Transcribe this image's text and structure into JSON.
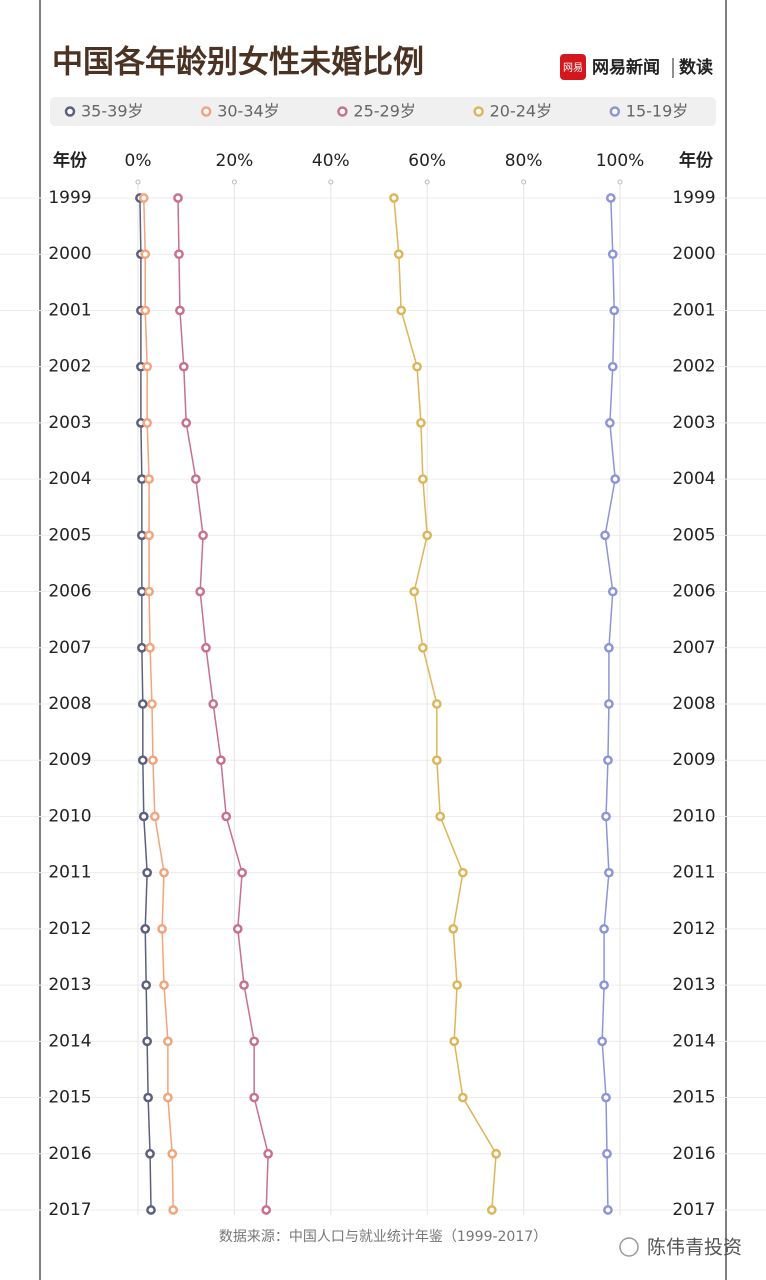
{
  "brand": {
    "badge": "网易",
    "name": "网易新闻",
    "section": "数读"
  },
  "watermark": "陈伟青投资",
  "chart_data": {
    "type": "line",
    "title": "中国各年龄别女性未婚比例",
    "source": "数据来源：中国人口与就业统计年鉴（1999-2017）",
    "y_axis_title": "年份",
    "categories": [
      "1999",
      "2000",
      "2001",
      "2002",
      "2003",
      "2004",
      "2005",
      "2006",
      "2007",
      "2008",
      "2009",
      "2010",
      "2011",
      "2012",
      "2013",
      "2014",
      "2015",
      "2016",
      "2017"
    ],
    "xlim": [
      0,
      100
    ],
    "xticks": [
      {
        "value": 0,
        "label": "0%"
      },
      {
        "value": 20,
        "label": "20%"
      },
      {
        "value": 40,
        "label": "40%"
      },
      {
        "value": 60,
        "label": "60%"
      },
      {
        "value": 80,
        "label": "80%"
      },
      {
        "value": 100,
        "label": "100%"
      }
    ],
    "grid": true,
    "series": [
      {
        "name": "35-39岁",
        "color": "#5d5f80",
        "values": [
          0.4,
          0.6,
          0.6,
          0.6,
          0.6,
          0.8,
          0.8,
          0.8,
          0.8,
          1.0,
          1.0,
          1.2,
          1.9,
          1.5,
          1.7,
          1.9,
          2.1,
          2.5,
          2.7
        ]
      },
      {
        "name": "30-34岁",
        "color": "#f2a47c",
        "values": [
          1.2,
          1.5,
          1.5,
          1.9,
          1.9,
          2.3,
          2.3,
          2.3,
          2.5,
          2.9,
          3.1,
          3.5,
          5.4,
          5.0,
          5.4,
          6.2,
          6.2,
          7.1,
          7.3
        ]
      },
      {
        "name": "25-29岁",
        "color": "#c8718c",
        "values": [
          8.3,
          8.5,
          8.7,
          9.5,
          10.0,
          12.0,
          13.5,
          12.9,
          14.1,
          15.6,
          17.2,
          18.3,
          21.6,
          20.7,
          22.0,
          24.1,
          24.1,
          27.0,
          26.6
        ]
      },
      {
        "name": "20-24岁",
        "color": "#ddb55a",
        "values": [
          53.1,
          54.1,
          54.6,
          57.9,
          58.7,
          59.1,
          60.0,
          57.3,
          59.1,
          62.0,
          62.0,
          62.7,
          67.4,
          65.4,
          66.2,
          65.6,
          67.4,
          74.3,
          73.4
        ]
      },
      {
        "name": "15-19岁",
        "color": "#8d95d8",
        "values": [
          98.1,
          98.5,
          98.8,
          98.5,
          97.9,
          99.0,
          96.9,
          98.5,
          97.7,
          97.7,
          97.5,
          97.1,
          97.7,
          96.7,
          96.7,
          96.3,
          97.1,
          97.3,
          97.5
        ]
      }
    ]
  }
}
